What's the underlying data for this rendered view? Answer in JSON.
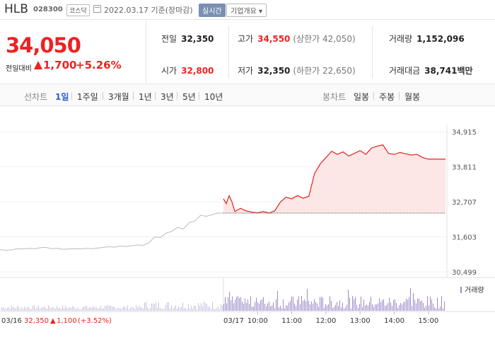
{
  "header": {
    "name": "HLB",
    "code": "028300",
    "market": "코스닥",
    "date": "2022.03.17 기준(장마감)",
    "realtime_label": "실시간",
    "overview_label": "기업개요 ▾"
  },
  "price": {
    "current": "34,050",
    "change_label": "전일대비",
    "change": "1,700",
    "pct": "+5.26%"
  },
  "stats": {
    "prev_close": {
      "k": "전일",
      "v": "32,350"
    },
    "high": {
      "k": "고가",
      "v": "34,550",
      "sub": "(상한가 42,050)"
    },
    "volume": {
      "k": "거래량",
      "v": "1,152,096"
    },
    "open": {
      "k": "시가",
      "v": "32,800"
    },
    "low": {
      "k": "저가",
      "v": "32,350",
      "sub": "(하한가 22,650)"
    },
    "value": {
      "k": "거래대금",
      "v": "38,741",
      "unit": "백만"
    }
  },
  "tabs": {
    "line_label": "선차트",
    "periods": [
      "1일",
      "1주일",
      "3개월",
      "1년",
      "3년",
      "5년",
      "10년"
    ],
    "active_period": "1일",
    "candle_label": "봉차트",
    "candles": [
      "일봉",
      "주봉",
      "월봉"
    ]
  },
  "colors": {
    "up": "#e22222",
    "prev_line": "#bbbbbb",
    "area": "#fde6e6",
    "volume": "#9b8bc7"
  },
  "chart_data": {
    "type": "area",
    "y_ticks": [
      "34,915",
      "33,811",
      "32,707",
      "31,603",
      "30,499"
    ],
    "ylim": [
      30499,
      34915
    ],
    "prev_close": 32350,
    "x_ticks": [
      "03/17",
      "10:00",
      "11:00",
      "12:00",
      "13:00",
      "14:00",
      "15:00"
    ],
    "prev_day_label": "03/16",
    "prev_day_summary": {
      "close": "32,350",
      "change": "1,100",
      "pct": "(+3.52%)"
    },
    "volume_legend": "거래량",
    "prev_series": [
      [
        "03/16 09:00",
        31200
      ],
      [
        "09:10",
        31180
      ],
      [
        "09:20",
        31190
      ],
      [
        "09:30",
        31230
      ],
      [
        "09:40",
        31220
      ],
      [
        "09:50",
        31240
      ],
      [
        "10:00",
        31230
      ],
      [
        "10:10",
        31260
      ],
      [
        "10:20",
        31270
      ],
      [
        "10:30",
        31230
      ],
      [
        "10:40",
        31240
      ],
      [
        "10:50",
        31210
      ],
      [
        "11:00",
        31220
      ],
      [
        "11:10",
        31230
      ],
      [
        "11:20",
        31220
      ],
      [
        "11:30",
        31240
      ],
      [
        "11:40",
        31230
      ],
      [
        "11:50",
        31250
      ],
      [
        "12:00",
        31270
      ],
      [
        "12:10",
        31290
      ],
      [
        "12:20",
        31280
      ],
      [
        "12:30",
        31310
      ],
      [
        "12:40",
        31300
      ],
      [
        "12:50",
        31320
      ],
      [
        "13:00",
        31350
      ],
      [
        "13:10",
        31330
      ],
      [
        "13:20",
        31420
      ],
      [
        "13:30",
        31600
      ],
      [
        "13:40",
        31580
      ],
      [
        "13:50",
        31720
      ],
      [
        "14:00",
        31780
      ],
      [
        "14:10",
        31900
      ],
      [
        "14:20",
        31850
      ],
      [
        "14:30",
        32050
      ],
      [
        "14:40",
        32100
      ],
      [
        "14:50",
        32280
      ],
      [
        "15:00",
        32250
      ],
      [
        "15:10",
        32300
      ],
      [
        "15:20",
        32350
      ],
      [
        "15:30",
        32350
      ]
    ],
    "series": [
      [
        "09:00",
        32800
      ],
      [
        "09:05",
        32650
      ],
      [
        "09:10",
        32900
      ],
      [
        "09:15",
        32700
      ],
      [
        "09:20",
        32400
      ],
      [
        "09:30",
        32500
      ],
      [
        "09:40",
        32420
      ],
      [
        "09:50",
        32380
      ],
      [
        "10:00",
        32360
      ],
      [
        "10:10",
        32400
      ],
      [
        "10:20",
        32350
      ],
      [
        "10:30",
        32420
      ],
      [
        "10:40",
        32700
      ],
      [
        "10:50",
        32850
      ],
      [
        "11:00",
        32800
      ],
      [
        "11:10",
        32900
      ],
      [
        "11:20",
        32820
      ],
      [
        "11:30",
        32880
      ],
      [
        "11:40",
        33600
      ],
      [
        "11:50",
        33900
      ],
      [
        "12:00",
        34100
      ],
      [
        "12:10",
        34300
      ],
      [
        "12:20",
        34200
      ],
      [
        "12:30",
        34280
      ],
      [
        "12:40",
        34150
      ],
      [
        "12:50",
        34230
      ],
      [
        "13:00",
        34320
      ],
      [
        "13:10",
        34200
      ],
      [
        "13:20",
        34400
      ],
      [
        "13:30",
        34460
      ],
      [
        "13:40",
        34500
      ],
      [
        "13:50",
        34230
      ],
      [
        "14:00",
        34200
      ],
      [
        "14:10",
        34260
      ],
      [
        "14:20",
        34220
      ],
      [
        "14:30",
        34180
      ],
      [
        "14:40",
        34200
      ],
      [
        "14:50",
        34100
      ],
      [
        "15:00",
        34050
      ],
      [
        "15:10",
        34050
      ],
      [
        "15:20",
        34050
      ],
      [
        "15:30",
        34050
      ]
    ]
  }
}
